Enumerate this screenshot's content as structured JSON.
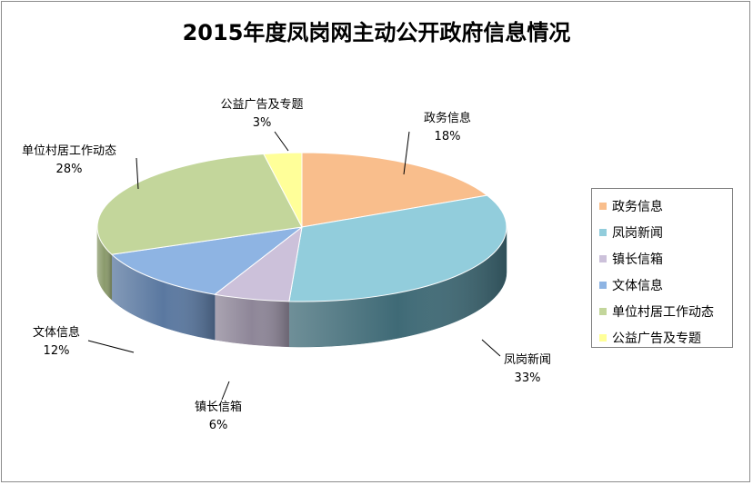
{
  "chart_data": {
    "type": "pie",
    "title": "2015年度凤岗网主动公开政府信息情况",
    "categories": [
      "政务信息",
      "凤岗新闻",
      "镇长信箱",
      "文体信息",
      "单位村居工作动态",
      "公益广告及专题"
    ],
    "values": [
      18,
      33,
      6,
      12,
      28,
      3
    ],
    "value_labels": [
      "18%",
      "33%",
      "6%",
      "12%",
      "28%",
      "3%"
    ],
    "colors": [
      "#F9BE8C",
      "#92CDDC",
      "#CCC1DA",
      "#8EB4E3",
      "#C3D69B",
      "#FFFF99"
    ],
    "side_colors": [
      "#C49570",
      "#3F6A76",
      "#8E8698",
      "#5A78A0",
      "#8A9A6B",
      "#C8C878"
    ],
    "legend_position": "right",
    "style": "3d-pie"
  }
}
